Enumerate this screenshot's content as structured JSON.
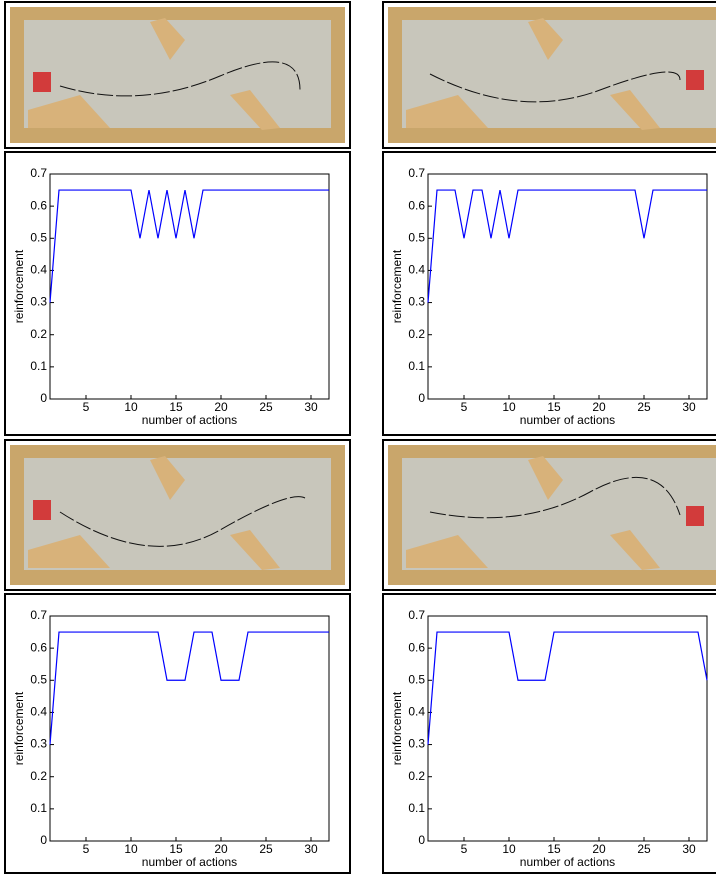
{
  "chart_data": [
    {
      "type": "line",
      "xlabel": "number of actions",
      "ylabel": "reinforcement",
      "x": [
        1,
        2,
        3,
        4,
        5,
        6,
        7,
        8,
        9,
        10,
        11,
        12,
        13,
        14,
        15,
        16,
        17,
        18,
        19,
        20,
        21,
        22,
        23,
        24,
        25,
        26,
        27,
        28,
        29,
        30,
        31,
        32
      ],
      "series": [
        {
          "color": "#0000ff",
          "values": [
            0.3,
            0.65,
            0.65,
            0.65,
            0.65,
            0.65,
            0.65,
            0.65,
            0.65,
            0.65,
            0.5,
            0.65,
            0.5,
            0.65,
            0.5,
            0.65,
            0.5,
            0.65,
            0.65,
            0.65,
            0.65,
            0.65,
            0.65,
            0.65,
            0.65,
            0.65,
            0.65,
            0.65,
            0.65,
            0.65,
            0.65,
            0.65
          ]
        }
      ],
      "xlim": [
        1,
        32
      ],
      "ylim": [
        0,
        0.7
      ],
      "xticks": [
        5,
        10,
        15,
        20,
        25,
        30
      ],
      "yticks": [
        0,
        0.1,
        0.2,
        0.3,
        0.4,
        0.5,
        0.6,
        0.7
      ]
    },
    {
      "type": "line",
      "xlabel": "number of actions",
      "ylabel": "reinforcement",
      "x": [
        1,
        2,
        3,
        4,
        5,
        6,
        7,
        8,
        9,
        10,
        11,
        12,
        13,
        14,
        15,
        16,
        17,
        18,
        19,
        20,
        21,
        22,
        23,
        24,
        25,
        26,
        27,
        28,
        29,
        30,
        31,
        32
      ],
      "series": [
        {
          "color": "#0000ff",
          "values": [
            0.3,
            0.65,
            0.65,
            0.65,
            0.5,
            0.65,
            0.65,
            0.5,
            0.65,
            0.5,
            0.65,
            0.65,
            0.65,
            0.65,
            0.65,
            0.65,
            0.65,
            0.65,
            0.65,
            0.65,
            0.65,
            0.65,
            0.65,
            0.65,
            0.5,
            0.65,
            0.65,
            0.65,
            0.65,
            0.65,
            0.65,
            0.65
          ]
        }
      ],
      "xlim": [
        1,
        32
      ],
      "ylim": [
        0,
        0.7
      ],
      "xticks": [
        5,
        10,
        15,
        20,
        25,
        30
      ],
      "yticks": [
        0,
        0.1,
        0.2,
        0.3,
        0.4,
        0.5,
        0.6,
        0.7
      ]
    },
    {
      "type": "line",
      "xlabel": "number of actions",
      "ylabel": "reinforcement",
      "x": [
        1,
        2,
        3,
        4,
        5,
        6,
        7,
        8,
        9,
        10,
        11,
        12,
        13,
        14,
        15,
        16,
        17,
        18,
        19,
        20,
        21,
        22,
        23,
        24,
        25,
        26,
        27,
        28,
        29,
        30,
        31,
        32
      ],
      "series": [
        {
          "color": "#0000ff",
          "values": [
            0.3,
            0.65,
            0.65,
            0.65,
            0.65,
            0.65,
            0.65,
            0.65,
            0.65,
            0.65,
            0.65,
            0.65,
            0.65,
            0.5,
            0.5,
            0.5,
            0.65,
            0.65,
            0.65,
            0.5,
            0.5,
            0.5,
            0.65,
            0.65,
            0.65,
            0.65,
            0.65,
            0.65,
            0.65,
            0.65,
            0.65,
            0.65
          ]
        }
      ],
      "xlim": [
        1,
        32
      ],
      "ylim": [
        0,
        0.7
      ],
      "xticks": [
        5,
        10,
        15,
        20,
        25,
        30
      ],
      "yticks": [
        0,
        0.1,
        0.2,
        0.3,
        0.4,
        0.5,
        0.6,
        0.7
      ]
    },
    {
      "type": "line",
      "xlabel": "number of actions",
      "ylabel": "reinforcement",
      "x": [
        1,
        2,
        3,
        4,
        5,
        6,
        7,
        8,
        9,
        10,
        11,
        12,
        13,
        14,
        15,
        16,
        17,
        18,
        19,
        20,
        21,
        22,
        23,
        24,
        25,
        26,
        27,
        28,
        29,
        30,
        31,
        32
      ],
      "series": [
        {
          "color": "#0000ff",
          "values": [
            0.3,
            0.65,
            0.65,
            0.65,
            0.65,
            0.65,
            0.65,
            0.65,
            0.65,
            0.65,
            0.5,
            0.5,
            0.5,
            0.5,
            0.65,
            0.65,
            0.65,
            0.65,
            0.65,
            0.65,
            0.65,
            0.65,
            0.65,
            0.65,
            0.65,
            0.65,
            0.65,
            0.65,
            0.65,
            0.65,
            0.65,
            0.5
          ]
        }
      ],
      "xlim": [
        1,
        32
      ],
      "ylim": [
        0,
        0.7
      ],
      "xticks": [
        5,
        10,
        15,
        20,
        25,
        30
      ],
      "yticks": [
        0,
        0.1,
        0.2,
        0.3,
        0.4,
        0.5,
        0.6,
        0.7
      ]
    }
  ]
}
